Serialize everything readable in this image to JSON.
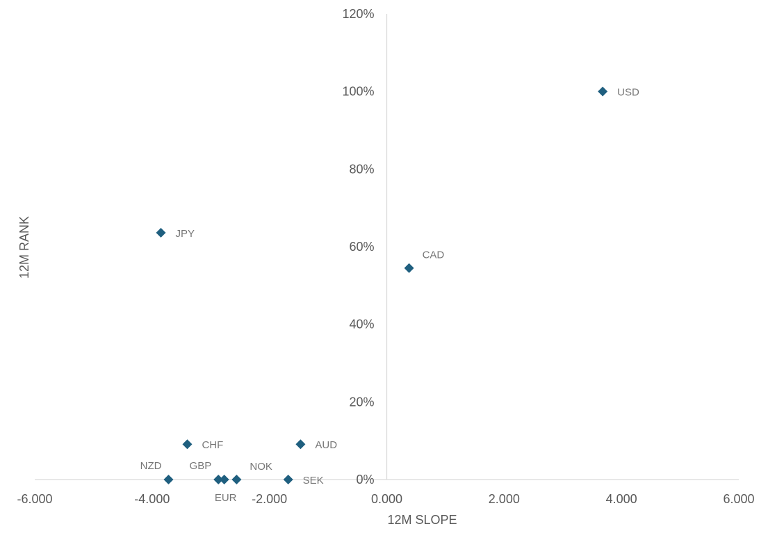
{
  "chart_data": {
    "type": "scatter",
    "title": "",
    "xlabel": "12M SLOPE",
    "ylabel": "12M RANK",
    "xlim": [
      -6,
      6
    ],
    "ylim": [
      0,
      1.2
    ],
    "x_ticks": [
      {
        "value": -6,
        "label": "-6.000"
      },
      {
        "value": -4,
        "label": "-4.000"
      },
      {
        "value": -2,
        "label": "-2.000"
      },
      {
        "value": 0,
        "label": "0.000"
      },
      {
        "value": 2,
        "label": "2.000"
      },
      {
        "value": 4,
        "label": "4.000"
      },
      {
        "value": 6,
        "label": "6.000"
      }
    ],
    "y_ticks": [
      {
        "value": 0,
        "label": "0%"
      },
      {
        "value": 0.2,
        "label": "20%"
      },
      {
        "value": 0.4,
        "label": "40%"
      },
      {
        "value": 0.6,
        "label": "60%"
      },
      {
        "value": 0.8,
        "label": "80%"
      },
      {
        "value": 1.0,
        "label": "100%"
      },
      {
        "value": 1.2,
        "label": "120%"
      }
    ],
    "grid": false,
    "marker_color": "#1f5f7f",
    "points": [
      {
        "label": "USD",
        "x": 3.68,
        "y": 1.0,
        "label_pos": "right"
      },
      {
        "label": "CAD",
        "x": 0.38,
        "y": 0.545,
        "label_pos": "above-right"
      },
      {
        "label": "JPY",
        "x": -3.85,
        "y": 0.636,
        "label_pos": "right"
      },
      {
        "label": "CHF",
        "x": -3.4,
        "y": 0.091,
        "label_pos": "right"
      },
      {
        "label": "AUD",
        "x": -1.47,
        "y": 0.091,
        "label_pos": "right"
      },
      {
        "label": "NZD",
        "x": -3.72,
        "y": 0.0,
        "label_pos": "above-left"
      },
      {
        "label": "GBP",
        "x": -2.87,
        "y": 0.0,
        "label_pos": "above-left"
      },
      {
        "label": "EUR",
        "x": -2.77,
        "y": 0.0,
        "label_pos": "below"
      },
      {
        "label": "NOK",
        "x": -2.56,
        "y": 0.0,
        "label_pos": "above-right"
      },
      {
        "label": "SEK",
        "x": -1.68,
        "y": 0.0,
        "label_pos": "right"
      }
    ]
  }
}
